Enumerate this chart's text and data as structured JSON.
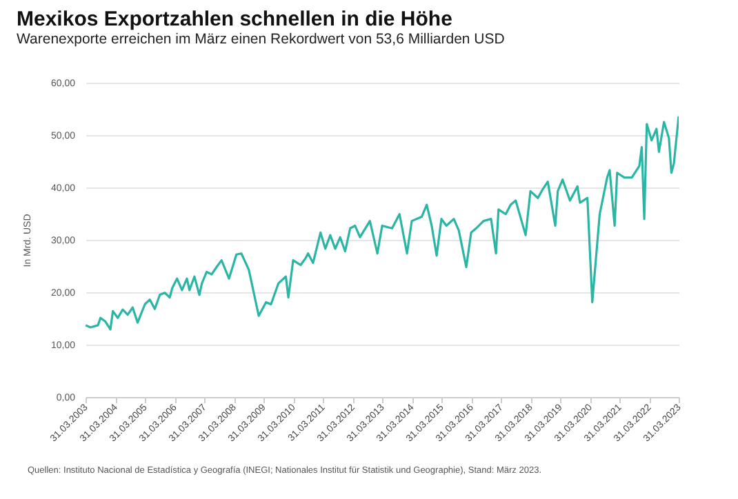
{
  "chart_data": {
    "type": "line",
    "title": "Mexikos Exportzahlen schnellen in die Höhe",
    "subtitle": "Warenexporte erreichen im März einen Rekordwert von 53,6 Milliarden USD",
    "ylabel": "In Mrd. USD",
    "x": [
      "2003-03",
      "2003-05",
      "2003-08",
      "2003-09",
      "2003-11",
      "2004-01",
      "2004-02",
      "2004-04",
      "2004-06",
      "2004-08",
      "2004-10",
      "2004-12",
      "2005-03",
      "2005-05",
      "2005-07",
      "2005-09",
      "2005-11",
      "2006-01",
      "2006-02",
      "2006-04",
      "2006-06",
      "2006-08",
      "2006-09",
      "2006-11",
      "2007-01",
      "2007-02",
      "2007-04",
      "2007-06",
      "2007-08",
      "2007-10",
      "2008-01",
      "2008-04",
      "2008-06",
      "2008-09",
      "2009-01",
      "2009-04",
      "2009-06",
      "2009-09",
      "2009-12",
      "2010-01",
      "2010-03",
      "2010-06",
      "2010-08",
      "2010-09",
      "2010-11",
      "2011-02",
      "2011-04",
      "2011-06",
      "2011-08",
      "2011-10",
      "2011-12",
      "2012-02",
      "2012-04",
      "2012-06",
      "2012-10",
      "2013-01",
      "2013-03",
      "2013-07",
      "2013-10",
      "2014-01",
      "2014-03",
      "2014-07",
      "2014-09",
      "2014-11",
      "2015-01",
      "2015-03",
      "2015-05",
      "2015-08",
      "2015-10",
      "2016-01",
      "2016-03",
      "2016-05",
      "2016-08",
      "2016-11",
      "2017-01",
      "2017-02",
      "2017-05",
      "2017-07",
      "2017-09",
      "2018-01",
      "2018-03",
      "2018-06",
      "2018-08",
      "2018-10",
      "2019-01",
      "2019-02",
      "2019-04",
      "2019-07",
      "2019-10",
      "2019-11",
      "2020-02",
      "2020-04",
      "2020-07",
      "2020-10",
      "2020-11",
      "2021-01",
      "2021-02",
      "2021-05",
      "2021-08",
      "2021-11",
      "2021-12",
      "2022-01",
      "2022-02",
      "2022-04",
      "2022-06",
      "2022-07",
      "2022-09",
      "2022-11",
      "2022-12",
      "2023-01",
      "2023-03"
    ],
    "series": [
      {
        "color": "#2ab5a5",
        "values": [
          13.7,
          13.3,
          13.7,
          15.1,
          14.4,
          12.9,
          16.4,
          15.1,
          16.7,
          15.7,
          17.1,
          14.2,
          17.7,
          18.6,
          16.8,
          19.5,
          19.9,
          19.0,
          20.8,
          22.6,
          20.4,
          22.6,
          20.4,
          23.0,
          19.5,
          21.7,
          23.9,
          23.4,
          24.8,
          26.1,
          22.6,
          27.2,
          27.4,
          24.3,
          15.5,
          18.1,
          17.7,
          21.7,
          23.0,
          19.0,
          26.1,
          25.2,
          26.5,
          27.4,
          25.6,
          31.4,
          28.3,
          30.9,
          28.3,
          30.5,
          27.8,
          32.2,
          32.7,
          30.5,
          33.6,
          27.4,
          32.7,
          32.2,
          34.9,
          27.4,
          33.6,
          34.4,
          36.7,
          32.7,
          27.0,
          34.0,
          32.7,
          34.0,
          31.8,
          24.8,
          31.4,
          32.2,
          33.6,
          34.0,
          27.4,
          35.8,
          34.9,
          36.7,
          37.5,
          30.9,
          39.3,
          38.0,
          39.7,
          41.1,
          32.7,
          39.3,
          41.5,
          37.5,
          40.2,
          37.1,
          38.0,
          18.1,
          34.9,
          41.9,
          43.3,
          32.7,
          42.8,
          41.9,
          41.9,
          44.1,
          47.7,
          34.0,
          52.1,
          49.0,
          51.2,
          46.8,
          52.5,
          49.4,
          42.8,
          44.6,
          53.6
        ]
      }
    ],
    "xlim": [
      "2003-03",
      "2023-03"
    ],
    "xticks": [
      {
        "value": "2003-03",
        "label": "31.03.2003"
      },
      {
        "value": "2004-03",
        "label": "31.03.2004"
      },
      {
        "value": "2005-03",
        "label": "31.03.2005"
      },
      {
        "value": "2006-03",
        "label": "31.03.2006"
      },
      {
        "value": "2007-03",
        "label": "31.03.2007"
      },
      {
        "value": "2008-03",
        "label": "31.03.2008"
      },
      {
        "value": "2009-03",
        "label": "31.03.2009"
      },
      {
        "value": "2010-03",
        "label": "31.03.2010"
      },
      {
        "value": "2011-03",
        "label": "31.03.2011"
      },
      {
        "value": "2012-03",
        "label": "31.03.2012"
      },
      {
        "value": "2013-03",
        "label": "31.03.2013"
      },
      {
        "value": "2014-03",
        "label": "31.03.2014"
      },
      {
        "value": "2015-03",
        "label": "31.03.2015"
      },
      {
        "value": "2016-03",
        "label": "31.03.2016"
      },
      {
        "value": "2017-03",
        "label": "31.03.2017"
      },
      {
        "value": "2018-03",
        "label": "31.03.2018"
      },
      {
        "value": "2019-03",
        "label": "31.03.2019"
      },
      {
        "value": "2020-03",
        "label": "31.03.2020"
      },
      {
        "value": "2021-03",
        "label": "31.03.2021"
      },
      {
        "value": "2022-03",
        "label": "31.03.2022"
      },
      {
        "value": "2023-03",
        "label": "31.03.2023"
      }
    ],
    "ylim": [
      0,
      60
    ],
    "yticks": [
      {
        "value": 0,
        "label": "0,00"
      },
      {
        "value": 10,
        "label": "10,00"
      },
      {
        "value": 20,
        "label": "20,00"
      },
      {
        "value": 30,
        "label": "30,00"
      },
      {
        "value": 40,
        "label": "40,00"
      },
      {
        "value": 50,
        "label": "50,00"
      },
      {
        "value": 60,
        "label": "60,00"
      }
    ],
    "grid": "y",
    "annotations": [
      "Quellen: Instituto Nacional de Estadística y Geografía (INEGI; Nationales Institut für Statistik und Geographie), Stand: März 2023."
    ]
  }
}
